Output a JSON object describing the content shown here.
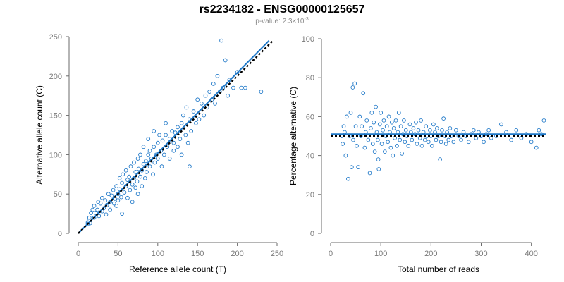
{
  "title": "rs2234182 - ENSG00000125657",
  "subtitle_prefix": "p-value: 2.3×10",
  "subtitle_exponent": "-3",
  "colors": {
    "points": "#1f78c8",
    "fit_line": "#1f78c8",
    "reference_line": "#000000",
    "axis": "#6b6b6b",
    "tick_text": "#7a7a7a"
  },
  "chart_data": [
    {
      "type": "scatter",
      "name": "counts",
      "xlabel": "Reference allele count (T)",
      "ylabel": "Alternative allele count (C)",
      "xlim": [
        0,
        250
      ],
      "ylim": [
        0,
        250
      ],
      "xticks": [
        0,
        50,
        100,
        150,
        200,
        250
      ],
      "yticks": [
        0,
        50,
        100,
        150,
        200,
        250
      ],
      "fit_line": {
        "x": [
          0,
          240
        ],
        "y": [
          0,
          245
        ]
      },
      "reference_line": {
        "x": [
          0,
          245
        ],
        "y": [
          0,
          245
        ],
        "style": "dotted"
      },
      "points": [
        [
          12,
          12
        ],
        [
          12,
          14
        ],
        [
          13,
          16
        ],
        [
          14,
          20
        ],
        [
          15,
          13
        ],
        [
          16,
          26
        ],
        [
          18,
          30
        ],
        [
          20,
          35
        ],
        [
          20,
          20
        ],
        [
          22,
          26
        ],
        [
          24,
          30
        ],
        [
          25,
          40
        ],
        [
          26,
          22
        ],
        [
          28,
          38
        ],
        [
          30,
          45
        ],
        [
          30,
          28
        ],
        [
          32,
          32
        ],
        [
          34,
          42
        ],
        [
          35,
          24
        ],
        [
          36,
          36
        ],
        [
          38,
          50
        ],
        [
          40,
          40
        ],
        [
          40,
          30
        ],
        [
          42,
          48
        ],
        [
          44,
          55
        ],
        [
          45,
          38
        ],
        [
          46,
          44
        ],
        [
          48,
          60
        ],
        [
          48,
          35
        ],
        [
          50,
          50
        ],
        [
          50,
          42
        ],
        [
          52,
          70
        ],
        [
          52,
          56
        ],
        [
          54,
          46
        ],
        [
          55,
          64
        ],
        [
          55,
          25
        ],
        [
          56,
          75
        ],
        [
          58,
          52
        ],
        [
          60,
          60
        ],
        [
          60,
          80
        ],
        [
          62,
          45
        ],
        [
          62,
          68
        ],
        [
          64,
          72
        ],
        [
          65,
          55
        ],
        [
          66,
          85
        ],
        [
          68,
          62
        ],
        [
          68,
          40
        ],
        [
          70,
          70
        ],
        [
          70,
          90
        ],
        [
          72,
          58
        ],
        [
          72,
          78
        ],
        [
          74,
          66
        ],
        [
          75,
          95
        ],
        [
          75,
          50
        ],
        [
          76,
          82
        ],
        [
          78,
          72
        ],
        [
          78,
          100
        ],
        [
          80,
          80
        ],
        [
          80,
          60
        ],
        [
          82,
          88
        ],
        [
          82,
          110
        ],
        [
          84,
          70
        ],
        [
          85,
          92
        ],
        [
          86,
          78
        ],
        [
          88,
          100
        ],
        [
          88,
          120
        ],
        [
          90,
          85
        ],
        [
          90,
          105
        ],
        [
          92,
          95
        ],
        [
          94,
          75
        ],
        [
          95,
          110
        ],
        [
          95,
          130
        ],
        [
          96,
          90
        ],
        [
          98,
          100
        ],
        [
          100,
          115
        ],
        [
          100,
          95
        ],
        [
          102,
          125
        ],
        [
          104,
          105
        ],
        [
          105,
          85
        ],
        [
          106,
          118
        ],
        [
          108,
          100
        ],
        [
          110,
          125
        ],
        [
          110,
          140
        ],
        [
          112,
          110
        ],
        [
          115,
          120
        ],
        [
          115,
          95
        ],
        [
          118,
          130
        ],
        [
          120,
          115
        ],
        [
          120,
          105
        ],
        [
          122,
          128
        ],
        [
          125,
          135
        ],
        [
          125,
          110
        ],
        [
          128,
          120
        ],
        [
          130,
          140
        ],
        [
          130,
          100
        ],
        [
          132,
          150
        ],
        [
          135,
          125
        ],
        [
          136,
          160
        ],
        [
          138,
          115
        ],
        [
          140,
          145
        ],
        [
          140,
          85
        ],
        [
          142,
          130
        ],
        [
          145,
          155
        ],
        [
          148,
          140
        ],
        [
          150,
          170
        ],
        [
          152,
          145
        ],
        [
          155,
          165
        ],
        [
          158,
          150
        ],
        [
          160,
          175
        ],
        [
          162,
          160
        ],
        [
          165,
          180
        ],
        [
          168,
          170
        ],
        [
          170,
          190
        ],
        [
          172,
          165
        ],
        [
          175,
          200
        ],
        [
          178,
          180
        ],
        [
          180,
          245
        ],
        [
          182,
          185
        ],
        [
          185,
          220
        ],
        [
          188,
          175
        ],
        [
          190,
          195
        ],
        [
          195,
          185
        ],
        [
          200,
          205
        ],
        [
          205,
          185
        ],
        [
          210,
          185
        ],
        [
          230,
          180
        ]
      ]
    },
    {
      "type": "scatter",
      "name": "percentage",
      "xlabel": "Total number of reads",
      "ylabel": "Percentage alternative (C)",
      "xlim": [
        0,
        430
      ],
      "ylim": [
        0,
        100
      ],
      "xticks": [
        0,
        100,
        200,
        300,
        400
      ],
      "yticks": [
        0,
        20,
        40,
        60,
        80,
        100
      ],
      "fit_line": {
        "x": [
          0,
          430
        ],
        "y": [
          51,
          51
        ]
      },
      "reference_line": {
        "x": [
          0,
          430
        ],
        "y": [
          50,
          50
        ],
        "style": "dotted"
      },
      "points": [
        [
          22,
          50
        ],
        [
          24,
          46
        ],
        [
          26,
          55
        ],
        [
          28,
          52
        ],
        [
          30,
          40
        ],
        [
          32,
          60
        ],
        [
          35,
          28
        ],
        [
          38,
          50
        ],
        [
          40,
          62
        ],
        [
          42,
          34
        ],
        [
          44,
          75
        ],
        [
          45,
          48
        ],
        [
          48,
          77
        ],
        [
          50,
          55
        ],
        [
          52,
          45
        ],
        [
          55,
          34
        ],
        [
          58,
          60
        ],
        [
          60,
          50
        ],
        [
          62,
          55
        ],
        [
          65,
          72
        ],
        [
          68,
          44
        ],
        [
          70,
          52
        ],
        [
          72,
          58
        ],
        [
          75,
          48
        ],
        [
          78,
          31
        ],
        [
          80,
          54
        ],
        [
          82,
          62
        ],
        [
          84,
          46
        ],
        [
          86,
          57
        ],
        [
          88,
          42
        ],
        [
          90,
          65
        ],
        [
          92,
          52
        ],
        [
          94,
          48
        ],
        [
          95,
          38
        ],
        [
          96,
          33
        ],
        [
          98,
          56
        ],
        [
          100,
          62
        ],
        [
          102,
          46
        ],
        [
          104,
          53
        ],
        [
          106,
          58
        ],
        [
          108,
          42
        ],
        [
          110,
          50
        ],
        [
          112,
          55
        ],
        [
          114,
          47
        ],
        [
          116,
          60
        ],
        [
          118,
          52
        ],
        [
          120,
          44
        ],
        [
          122,
          57
        ],
        [
          124,
          40
        ],
        [
          126,
          54
        ],
        [
          128,
          49
        ],
        [
          130,
          58
        ],
        [
          132,
          45
        ],
        [
          134,
          52
        ],
        [
          136,
          62
        ],
        [
          138,
          48
        ],
        [
          140,
          55
        ],
        [
          142,
          41
        ],
        [
          144,
          51
        ],
        [
          146,
          58
        ],
        [
          148,
          47
        ],
        [
          150,
          53
        ],
        [
          152,
          50
        ],
        [
          155,
          45
        ],
        [
          158,
          56
        ],
        [
          160,
          52
        ],
        [
          162,
          48
        ],
        [
          165,
          54
        ],
        [
          168,
          51
        ],
        [
          170,
          57
        ],
        [
          172,
          46
        ],
        [
          175,
          53
        ],
        [
          178,
          49
        ],
        [
          180,
          58
        ],
        [
          182,
          45
        ],
        [
          185,
          52
        ],
        [
          188,
          48
        ],
        [
          190,
          55
        ],
        [
          192,
          50
        ],
        [
          195,
          47
        ],
        [
          198,
          53
        ],
        [
          200,
          50
        ],
        [
          202,
          45
        ],
        [
          205,
          56
        ],
        [
          208,
          52
        ],
        [
          210,
          48
        ],
        [
          212,
          54
        ],
        [
          215,
          50
        ],
        [
          218,
          38
        ],
        [
          220,
          47
        ],
        [
          222,
          53
        ],
        [
          225,
          59
        ],
        [
          228,
          50
        ],
        [
          230,
          46
        ],
        [
          232,
          52
        ],
        [
          235,
          48
        ],
        [
          238,
          54
        ],
        [
          240,
          50
        ],
        [
          245,
          47
        ],
        [
          250,
          53
        ],
        [
          255,
          50
        ],
        [
          260,
          48
        ],
        [
          265,
          52
        ],
        [
          270,
          50
        ],
        [
          275,
          47
        ],
        [
          280,
          51
        ],
        [
          285,
          53
        ],
        [
          290,
          49
        ],
        [
          295,
          52
        ],
        [
          300,
          50
        ],
        [
          305,
          47
        ],
        [
          310,
          51
        ],
        [
          315,
          53
        ],
        [
          320,
          49
        ],
        [
          330,
          50
        ],
        [
          340,
          56
        ],
        [
          350,
          52
        ],
        [
          360,
          48
        ],
        [
          370,
          53
        ],
        [
          380,
          49
        ],
        [
          390,
          51
        ],
        [
          400,
          47
        ],
        [
          410,
          44
        ],
        [
          415,
          53
        ],
        [
          420,
          51
        ],
        [
          425,
          58
        ]
      ]
    }
  ]
}
